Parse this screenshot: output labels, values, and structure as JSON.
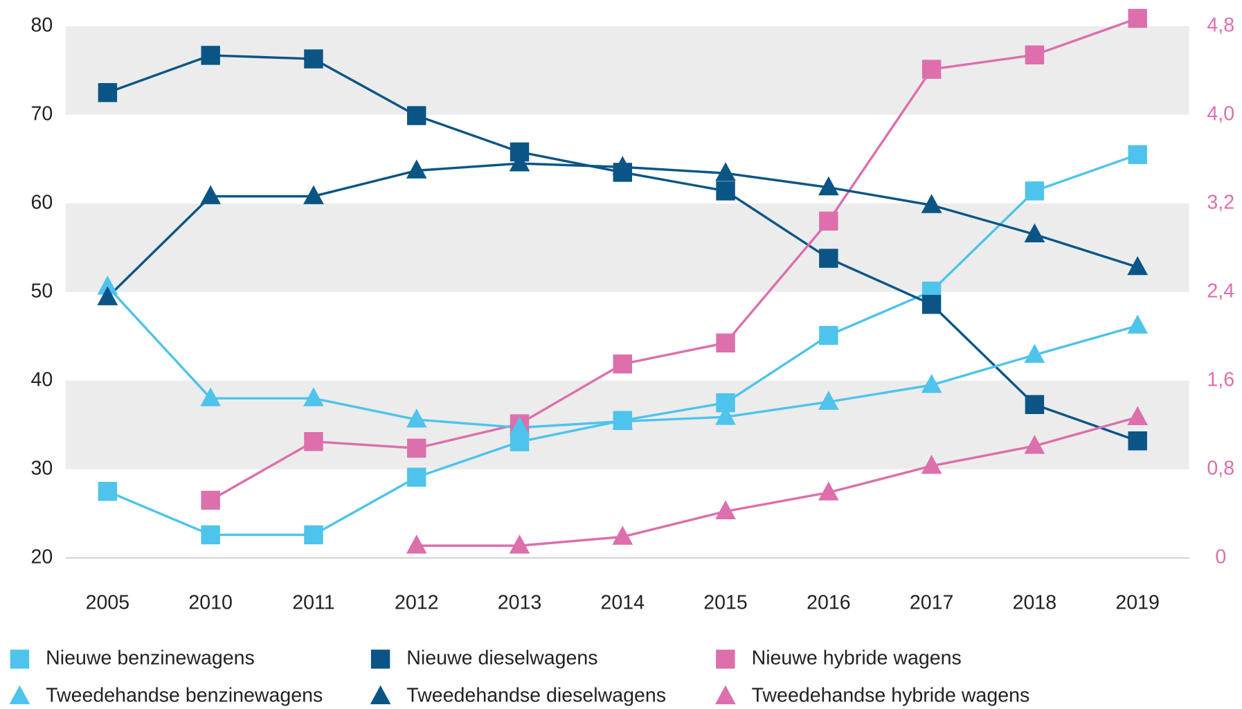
{
  "chart_data": {
    "type": "line",
    "categories": [
      "2005",
      "2010",
      "2011",
      "2012",
      "2013",
      "2014",
      "2015",
      "2016",
      "2017",
      "2018",
      "2019"
    ],
    "ylim": [
      20,
      80
    ],
    "yticks": [
      20,
      30,
      40,
      50,
      60,
      70,
      80
    ],
    "y2lim": [
      0,
      4.8
    ],
    "y2ticks": [
      0,
      {
        "value": 0.8,
        "label": "0,8"
      },
      {
        "value": 1.6,
        "label": "1,6"
      },
      {
        "value": 2.4,
        "label": "2,4"
      },
      {
        "value": 3.2,
        "label": "3,2"
      },
      {
        "value": 4.0,
        "label": "4,0"
      },
      {
        "value": 4.8,
        "label": "4,8"
      }
    ],
    "y2_color": "#dc6fac",
    "band_color": "#ececec",
    "series": [
      {
        "name": "Nieuwe benzinewagens",
        "color": "#4ec3ec",
        "marker": "square",
        "values": [
          27.5,
          22.6,
          22.6,
          29.1,
          33.1,
          35.5,
          37.5,
          45.1,
          50.1,
          61.4,
          65.5
        ]
      },
      {
        "name": "Nieuwe dieselwagens",
        "color": "#0a5586",
        "marker": "square",
        "values": [
          72.5,
          76.7,
          76.3,
          69.9,
          65.8,
          63.5,
          61.4,
          53.8,
          48.6,
          37.3,
          33.2
        ]
      },
      {
        "name": "Nieuwe hybride wagens",
        "color": "#dc6fac",
        "marker": "square",
        "axis": "y2",
        "values": [
          null,
          0.52,
          1.05,
          0.99,
          1.21,
          1.75,
          1.94,
          3.04,
          4.41,
          4.54,
          4.87
        ]
      },
      {
        "name": "Tweedehandse benzinewagens",
        "color": "#4ec3ec",
        "marker": "triangle",
        "values": [
          50.6,
          38.0,
          38.0,
          35.6,
          34.7,
          35.4,
          35.9,
          37.6,
          39.5,
          42.9,
          46.2
        ]
      },
      {
        "name": "Tweedehandse dieselwagens",
        "color": "#0a5586",
        "marker": "triangle",
        "values": [
          49.4,
          60.8,
          60.8,
          63.7,
          64.5,
          64.1,
          63.4,
          61.8,
          59.8,
          56.5,
          52.8
        ]
      },
      {
        "name": "Tweedehandse hybride wagens",
        "color": "#dc6fac",
        "marker": "triangle",
        "axis": "y2",
        "values": [
          null,
          null,
          null,
          0.11,
          0.11,
          0.19,
          0.42,
          0.59,
          0.83,
          1.01,
          1.27
        ]
      }
    ]
  }
}
